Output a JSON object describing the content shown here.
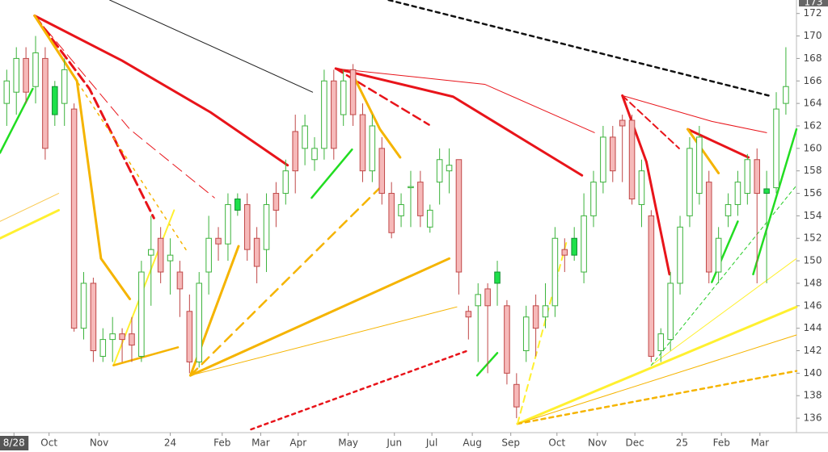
{
  "chart_data": {
    "type": "candlestick",
    "price_flag": "173",
    "ylim": [
      135,
      173.2
    ],
    "yticks": [
      136,
      138,
      140,
      142,
      144,
      146,
      148,
      150,
      152,
      154,
      156,
      158,
      160,
      162,
      164,
      166,
      168,
      170,
      172
    ],
    "xlim": [
      -0.7,
      82.1
    ],
    "xticks": [
      {
        "value": 0.75,
        "label": "8/28"
      },
      {
        "value": 4.4,
        "label": "Oct"
      },
      {
        "value": 9.6,
        "label": "Nov"
      },
      {
        "value": 17,
        "label": "24"
      },
      {
        "value": 22.4,
        "label": "Feb"
      },
      {
        "value": 26.4,
        "label": "Mar"
      },
      {
        "value": 30.3,
        "label": "Apr"
      },
      {
        "value": 35.5,
        "label": "May"
      },
      {
        "value": 40.3,
        "label": "Jun"
      },
      {
        "value": 44.2,
        "label": "Jul"
      },
      {
        "value": 48.4,
        "label": "Aug"
      },
      {
        "value": 52.4,
        "label": "Sep"
      },
      {
        "value": 57.2,
        "label": "Oct"
      },
      {
        "value": 61.4,
        "label": "Nov"
      },
      {
        "value": 65.3,
        "label": "Dec"
      },
      {
        "value": 70.2,
        "label": "25"
      },
      {
        "value": 74.3,
        "label": "Feb"
      },
      {
        "value": 78.3,
        "label": "Mar"
      }
    ],
    "up_color": "#3cb33c",
    "down_color": "#c04848",
    "down_fill": "#f6b9b9",
    "filled_up_color": "#1ee04a",
    "filled_up": [
      5,
      24,
      51,
      59,
      79
    ],
    "candles": [
      [
        164,
        167,
        162,
        166
      ],
      [
        165,
        169,
        163,
        168
      ],
      [
        168,
        169,
        164,
        165
      ],
      [
        165.5,
        170,
        164,
        168.5
      ],
      [
        168,
        169,
        159,
        160
      ],
      [
        163,
        166,
        162,
        165.5
      ],
      [
        164,
        168,
        162,
        167
      ],
      [
        163.5,
        164,
        143.7,
        144
      ],
      [
        144,
        149,
        143,
        148
      ],
      [
        148,
        148.5,
        141,
        142
      ],
      [
        141.5,
        144,
        141,
        143
      ],
      [
        143,
        145,
        141,
        143.5
      ],
      [
        143.5,
        144,
        141,
        143
      ],
      [
        143.5,
        145,
        141,
        142.5
      ],
      [
        141.5,
        150,
        141,
        149
      ],
      [
        150.5,
        154,
        146,
        151
      ],
      [
        152,
        153,
        148,
        149
      ],
      [
        150,
        152,
        147,
        150.5
      ],
      [
        149,
        150,
        145,
        147.5
      ],
      [
        145.5,
        147,
        140,
        141
      ],
      [
        141,
        149,
        140.5,
        148
      ],
      [
        149,
        154,
        147,
        152
      ],
      [
        152,
        153,
        150,
        151.5
      ],
      [
        151.5,
        156,
        150,
        155
      ],
      [
        154.5,
        156,
        154,
        155.5
      ],
      [
        155,
        156,
        150,
        151
      ],
      [
        152,
        153,
        148,
        149.5
      ],
      [
        151,
        156,
        149,
        155
      ],
      [
        156,
        157,
        153,
        154.5
      ],
      [
        156,
        159,
        155,
        158
      ],
      [
        161.5,
        163,
        156,
        158
      ],
      [
        160,
        163,
        158.5,
        162
      ],
      [
        159,
        161,
        158,
        160
      ],
      [
        160,
        167,
        159,
        166
      ],
      [
        166,
        167,
        159,
        160
      ],
      [
        163,
        167,
        162,
        166
      ],
      [
        167,
        167.5,
        162,
        163
      ],
      [
        163,
        164,
        157,
        158
      ],
      [
        158,
        163,
        157,
        162
      ],
      [
        160,
        161,
        155,
        156
      ],
      [
        156,
        157,
        152,
        152.5
      ],
      [
        154,
        156,
        153,
        155
      ],
      [
        156.5,
        158,
        153,
        156.6
      ],
      [
        157,
        158,
        153,
        154
      ],
      [
        153,
        155,
        152.5,
        154.5
      ],
      [
        157,
        160,
        155,
        159
      ],
      [
        158,
        160,
        156,
        158.5
      ],
      [
        159,
        159,
        147,
        149
      ],
      [
        145.5,
        146,
        143,
        145
      ],
      [
        146,
        148,
        141,
        147
      ],
      [
        147.5,
        148,
        140,
        146
      ],
      [
        148,
        150,
        146,
        149
      ],
      [
        146,
        146.5,
        139,
        140
      ],
      [
        139,
        140,
        136,
        137
      ],
      [
        142,
        146,
        141,
        145
      ],
      [
        146,
        147,
        141.5,
        144
      ],
      [
        145,
        148,
        144,
        146
      ],
      [
        146,
        153,
        145,
        152
      ],
      [
        151,
        152,
        149,
        150.5
      ],
      [
        150.5,
        153,
        150,
        152
      ],
      [
        149,
        156,
        148,
        154
      ],
      [
        154,
        158,
        153,
        157
      ],
      [
        157,
        162,
        156,
        161
      ],
      [
        161,
        162,
        157,
        158
      ],
      [
        162.5,
        163,
        157,
        162
      ],
      [
        162.5,
        163,
        155,
        155.5
      ],
      [
        155,
        159,
        153,
        158
      ],
      [
        154,
        154.5,
        141,
        141.5
      ],
      [
        142,
        144,
        141,
        143.5
      ],
      [
        143,
        149,
        142,
        148
      ],
      [
        148,
        154,
        147,
        153
      ],
      [
        154,
        161,
        153,
        160
      ],
      [
        156,
        162,
        155,
        161
      ],
      [
        157,
        158,
        148,
        149
      ],
      [
        149,
        153,
        148,
        152
      ],
      [
        154,
        156,
        153,
        155
      ],
      [
        155,
        158,
        154,
        157
      ],
      [
        156,
        159.5,
        155,
        159
      ],
      [
        159,
        160,
        148,
        156
      ],
      [
        156,
        158,
        148,
        156.4
      ],
      [
        156.5,
        165,
        156,
        163.5
      ],
      [
        164,
        169,
        163,
        165.5
      ]
    ],
    "lines": [
      {
        "x": [
          10.7,
          31.8
        ],
        "y": [
          173.2,
          165
        ],
        "color": "#222222",
        "width": 1,
        "dash": "none"
      },
      {
        "x": [
          39.7,
          79.2
        ],
        "y": [
          173.2,
          164.7
        ],
        "color": "#111111",
        "width": 2.5,
        "dash": "5 5"
      },
      {
        "x": [
          25.4,
          47.9
        ],
        "y": [
          135,
          142
        ],
        "color": "#e8141a",
        "width": 2.5,
        "dash": "4 5"
      },
      {
        "x": [
          2.9,
          12,
          21.2,
          29.2
        ],
        "y": [
          171.8,
          167.8,
          163.2,
          158.5
        ],
        "color": "#e8141a",
        "width": 3,
        "dash": "none"
      },
      {
        "x": [
          2.9,
          8.6,
          15.3
        ],
        "y": [
          171.8,
          165.3,
          153.8
        ],
        "color": "#e8141a",
        "width": 3,
        "dash": "12 6"
      },
      {
        "x": [
          2.9,
          12.8,
          21.6
        ],
        "y": [
          171.8,
          161.7,
          155.6
        ],
        "color": "#e8141a",
        "width": 1,
        "dash": "14 7"
      },
      {
        "x": [
          2.9,
          7.3,
          9.8,
          12.8
        ],
        "y": [
          171.8,
          166,
          150.2,
          146.6
        ],
        "color": "#f5b400",
        "width": 3,
        "dash": "none"
      },
      {
        "x": [
          2.9,
          18.7
        ],
        "y": [
          171.8,
          150.9
        ],
        "color": "#f5b400",
        "width": 1.5,
        "dash": "3 6"
      },
      {
        "x": [
          34.2,
          46.4,
          59.8
        ],
        "y": [
          167.1,
          164.6,
          157.6
        ],
        "color": "#e8141a",
        "width": 3,
        "dash": "none"
      },
      {
        "x": [
          34.2,
          49.7,
          61.1
        ],
        "y": [
          167.1,
          165.7,
          161.4
        ],
        "color": "#e8141a",
        "width": 1,
        "dash": "none"
      },
      {
        "x": [
          34.2,
          43.9
        ],
        "y": [
          167.1,
          162.1
        ],
        "color": "#e8141a",
        "width": 2.5,
        "dash": "10 6"
      },
      {
        "x": [
          35.9,
          38.8,
          40.9
        ],
        "y": [
          166.7,
          161.7,
          159.2
        ],
        "color": "#f5b400",
        "width": 3,
        "dash": "none"
      },
      {
        "x": [
          64,
          66.5,
          68.9
        ],
        "y": [
          164.7,
          158.8,
          148.8
        ],
        "color": "#e8141a",
        "width": 3,
        "dash": "none"
      },
      {
        "x": [
          64,
          69.9
        ],
        "y": [
          164.7,
          160
        ],
        "color": "#e8141a",
        "width": 2,
        "dash": "8 5"
      },
      {
        "x": [
          64,
          73.3,
          79
        ],
        "y": [
          164.7,
          162.4,
          161.4
        ],
        "color": "#e8141a",
        "width": 1,
        "dash": "none"
      },
      {
        "x": [
          70.8,
          77.1
        ],
        "y": [
          161.7,
          159.2
        ],
        "color": "#e8141a",
        "width": 3,
        "dash": "none"
      },
      {
        "x": [
          70.8,
          74
        ],
        "y": [
          161.7,
          157.8
        ],
        "color": "#f5b400",
        "width": 3,
        "dash": "none"
      },
      {
        "x": [
          19.1,
          24.1
        ],
        "y": [
          139.8,
          151.3
        ],
        "color": "#f5b400",
        "width": 3,
        "dash": "none"
      },
      {
        "x": [
          19.1,
          46
        ],
        "y": [
          139.8,
          150.2
        ],
        "color": "#f5b400",
        "width": 3,
        "dash": "none"
      },
      {
        "x": [
          19.1,
          46.8
        ],
        "y": [
          139.8,
          145.9
        ],
        "color": "#f5b400",
        "width": 1,
        "dash": "none"
      },
      {
        "x": [
          19.1,
          38.8
        ],
        "y": [
          139.8,
          156.5
        ],
        "color": "#f5b400",
        "width": 2.5,
        "dash": "12 8"
      },
      {
        "x": [
          11.1,
          17.4
        ],
        "y": [
          140.7,
          154.5
        ],
        "color": "#fff030",
        "width": 2,
        "dash": "none"
      },
      {
        "x": [
          11.1,
          17.8
        ],
        "y": [
          140.7,
          142.3
        ],
        "color": "#f5b400",
        "width": 2.5,
        "dash": "none"
      },
      {
        "x": [
          53.1,
          82.1
        ],
        "y": [
          135.5,
          145.9
        ],
        "color": "#fff030",
        "width": 3,
        "dash": "none"
      },
      {
        "x": [
          53.1,
          82.1
        ],
        "y": [
          135.5,
          140.2
        ],
        "color": "#f5b400",
        "width": 2.5,
        "dash": "5 5"
      },
      {
        "x": [
          53.1,
          82.1
        ],
        "y": [
          135.5,
          143.4
        ],
        "color": "#f5b400",
        "width": 1,
        "dash": "none"
      },
      {
        "x": [
          53.1,
          58.2
        ],
        "y": [
          135.5,
          151.7
        ],
        "color": "#fff030",
        "width": 2,
        "dash": "8 6"
      },
      {
        "x": [
          67,
          82.1
        ],
        "y": [
          140.7,
          150.2
        ],
        "color": "#fff030",
        "width": 1,
        "dash": "none"
      },
      {
        "x": [
          67,
          82.1
        ],
        "y": [
          140.7,
          156.7
        ],
        "color": "#22cc22",
        "width": 1,
        "dash": "4 4"
      },
      {
        "x": [
          -0.7,
          5.4
        ],
        "y": [
          152,
          154.5
        ],
        "color": "#fff030",
        "width": 3,
        "dash": "none"
      },
      {
        "x": [
          -0.7,
          5.4
        ],
        "y": [
          153.5,
          156
        ],
        "color": "#f9c950",
        "width": 1,
        "dash": "none"
      },
      {
        "x": [
          -0.7,
          2.7
        ],
        "y": [
          159.6,
          165.3
        ],
        "color": "#22dd22",
        "width": 2.5,
        "dash": "none"
      },
      {
        "x": [
          31.7,
          35.9
        ],
        "y": [
          155.6,
          159.9
        ],
        "color": "#22dd22",
        "width": 2.5,
        "dash": "none"
      },
      {
        "x": [
          73.3,
          76
        ],
        "y": [
          148.1,
          153.5
        ],
        "color": "#22dd22",
        "width": 2.5,
        "dash": "none"
      },
      {
        "x": [
          77.6,
          82.1
        ],
        "y": [
          148.8,
          161.7
        ],
        "color": "#22dd22",
        "width": 2.5,
        "dash": "none"
      },
      {
        "x": [
          48.9,
          51
        ],
        "y": [
          139.8,
          141.8
        ],
        "color": "#22dd22",
        "width": 2.5,
        "dash": "none"
      }
    ]
  }
}
